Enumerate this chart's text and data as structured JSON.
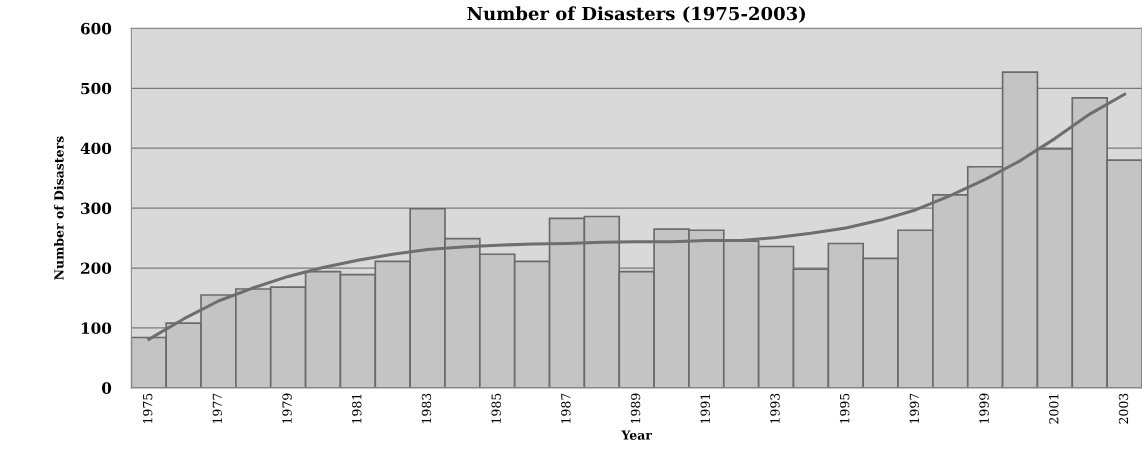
{
  "chart_data": {
    "type": "bar",
    "title": "Number of Disasters (1975-2003)",
    "xlabel": "Year",
    "ylabel": "Number of Disasters",
    "categories": [
      "1975",
      null,
      "1977",
      null,
      "1979",
      null,
      "1981",
      null,
      "1983",
      null,
      "1985",
      null,
      "1987",
      null,
      "1989",
      null,
      "1991",
      null,
      "1993",
      null,
      "1995",
      null,
      "1997",
      null,
      "1999",
      null,
      "2001",
      null,
      "2003"
    ],
    "series": [
      {
        "color": "#c4c4c4",
        "values": [
          84,
          108,
          155,
          165,
          168,
          194,
          189,
          211,
          299,
          249,
          223,
          211,
          283,
          286,
          194,
          265,
          263,
          245,
          236,
          198,
          241,
          216,
          263,
          322,
          369,
          527,
          399,
          484,
          380
        ]
      },
      {
        "type": "line",
        "color": "#6e6e6e",
        "values": [
          81,
          115,
          145,
          167,
          186,
          201,
          213,
          223,
          231,
          235,
          238,
          240,
          241,
          243,
          244,
          244,
          246,
          246,
          251,
          258,
          267,
          280,
          297,
          321,
          348,
          379,
          416,
          457,
          490
        ]
      }
    ],
    "ylim": [
      0,
      600
    ],
    "yticks": [
      0,
      100,
      200,
      300,
      400,
      500,
      600
    ],
    "grid": "y",
    "legend": false
  }
}
